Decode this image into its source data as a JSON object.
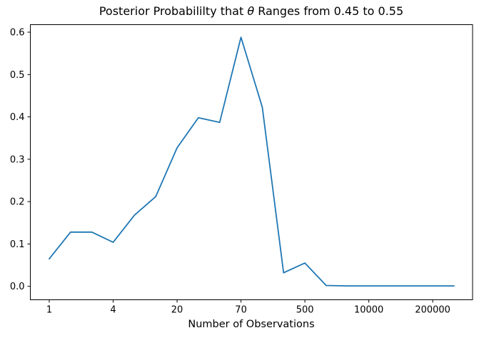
{
  "chart_data": {
    "type": "line",
    "title": "Posterior Probabililty that θ Ranges from 0.45 to 0.55",
    "title_parts": {
      "before": "Posterior Probabililty that ",
      "theta": "θ",
      "after": " Ranges from 0.45 to 0.55"
    },
    "xlabel": "Number of Observations",
    "ylabel": "",
    "x_axis": {
      "scale": "category-index",
      "tick_labels": [
        "1",
        "4",
        "20",
        "70",
        "500",
        "10000",
        "200000"
      ],
      "tick_indices": [
        0,
        3,
        6,
        9,
        12,
        15,
        18
      ]
    },
    "y_axis": {
      "ticks": [
        0.0,
        0.1,
        0.2,
        0.3,
        0.4,
        0.5,
        0.6
      ],
      "range_approx": [
        -0.03,
        0.62
      ]
    },
    "series": [
      {
        "name": "posterior-probability",
        "color": "#1f77b4",
        "values": [
          0.065,
          0.128,
          0.128,
          0.104,
          0.168,
          0.212,
          0.327,
          0.398,
          0.387,
          0.588,
          0.423,
          0.032,
          0.055,
          0.002,
          0.001,
          0.001,
          0.001,
          0.001,
          0.001,
          0.001
        ]
      }
    ],
    "legend": "none",
    "grid": false,
    "background": "#ffffff",
    "spine_color": "#000000"
  }
}
